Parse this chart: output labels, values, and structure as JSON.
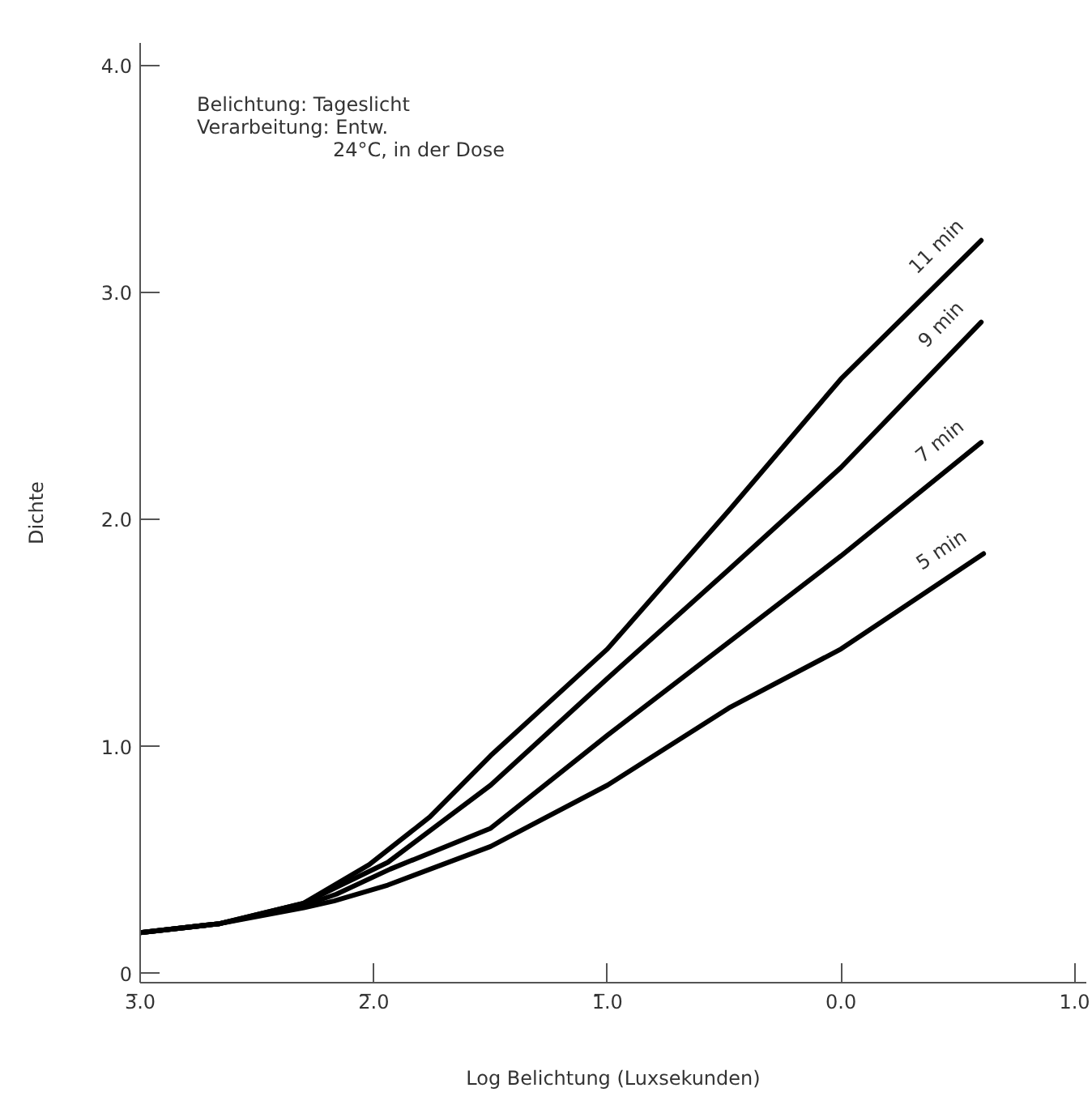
{
  "chart_data": {
    "type": "line",
    "xlabel": "Log Belichtung (Luxsekunden)",
    "ylabel": "Dichte",
    "annotations": [
      "Belichtung: Tageslicht",
      "Verarbeitung:  Entw.",
      "24°C, in der Dose"
    ],
    "xlim": [
      -3.0,
      1.05
    ],
    "ylim": [
      -0.04,
      4.1
    ],
    "xticks": [
      {
        "value": -3,
        "label": "3̅.0"
      },
      {
        "value": -2,
        "label": "2̅.0"
      },
      {
        "value": -1,
        "label": "1̅.0"
      },
      {
        "value": 0,
        "label": "0.0"
      },
      {
        "value": 1,
        "label": "1.0"
      }
    ],
    "yticks": [
      {
        "value": 0,
        "label": "0"
      },
      {
        "value": 1,
        "label": "1.0"
      },
      {
        "value": 2,
        "label": "2.0"
      },
      {
        "value": 3,
        "label": "3.0"
      },
      {
        "value": 4,
        "label": "4.0"
      }
    ],
    "grid": false,
    "marker": "none",
    "line_style": "solid",
    "series": [
      {
        "name": "11 min",
        "color": "#000000",
        "x": [
          -3.0,
          -2.66,
          -2.3,
          -2.02,
          -1.76,
          -1.5,
          -1.0,
          -0.48,
          0.0,
          0.6
        ],
        "values": [
          0.18,
          0.22,
          0.31,
          0.48,
          0.69,
          0.96,
          1.43,
          2.04,
          2.62,
          3.23
        ]
      },
      {
        "name": "9 min",
        "color": "#000000",
        "x": [
          -3.0,
          -2.66,
          -2.3,
          -2.16,
          -1.94,
          -1.5,
          -1.0,
          -0.48,
          0.0,
          0.6
        ],
        "values": [
          0.18,
          0.22,
          0.31,
          0.38,
          0.49,
          0.83,
          1.3,
          1.78,
          2.23,
          2.87
        ]
      },
      {
        "name": "7 min",
        "color": "#000000",
        "x": [
          -3.0,
          -2.66,
          -2.3,
          -2.16,
          -1.93,
          -1.5,
          -1.0,
          -0.48,
          0.0,
          0.6
        ],
        "values": [
          0.18,
          0.22,
          0.3,
          0.35,
          0.46,
          0.64,
          1.05,
          1.46,
          1.84,
          2.34
        ]
      },
      {
        "name": "5 min",
        "color": "#000000",
        "x": [
          -3.0,
          -2.66,
          -2.3,
          -2.17,
          -1.94,
          -1.5,
          -1.0,
          -0.48,
          0.0,
          0.61
        ],
        "values": [
          0.18,
          0.22,
          0.29,
          0.32,
          0.39,
          0.56,
          0.83,
          1.17,
          1.43,
          1.85
        ]
      }
    ]
  }
}
